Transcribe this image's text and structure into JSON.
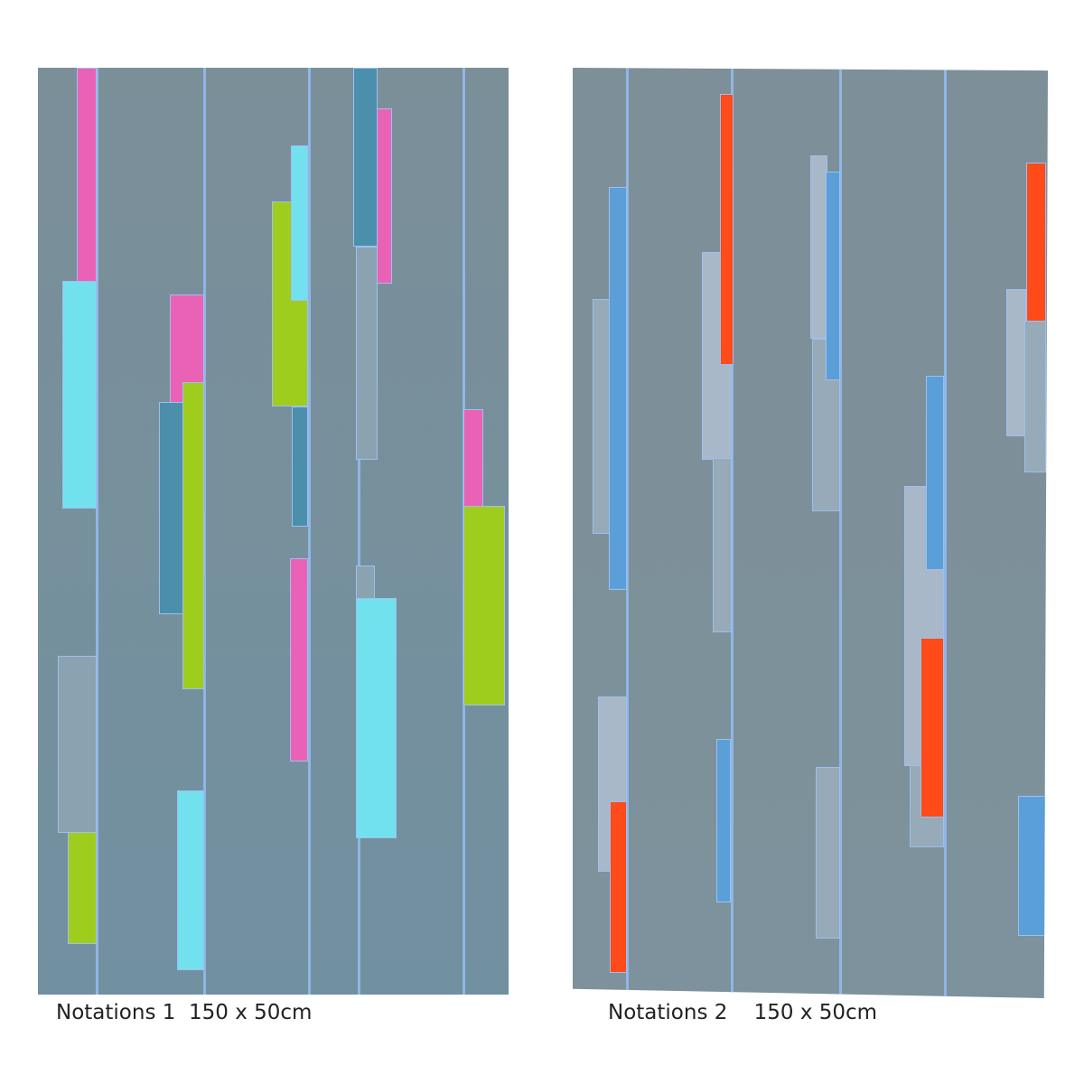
{
  "artworks": [
    {
      "caption": "Notations 1  150 x 50cm",
      "colors": [
        "#ea62b6",
        "#72e1ee",
        "#9fcd1d",
        "#4b8fad",
        "#7b8f99"
      ]
    },
    {
      "caption": "Notations 2    150 x 50cm",
      "colors": [
        "#ff4a19",
        "#5a9fd8",
        "#a8b8c8",
        "#7d8f98"
      ]
    }
  ]
}
